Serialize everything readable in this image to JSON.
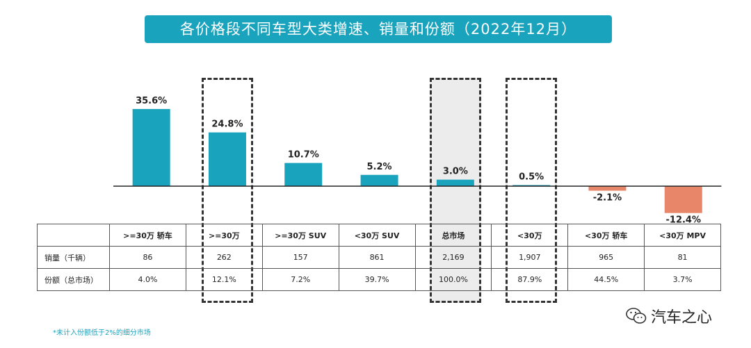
{
  "title": "各价格段不同车型大类增速、销量和份额（2022年12月）",
  "chart_data": {
    "type": "bar",
    "categories": [
      ">=30万 轿车",
      ">=30万",
      ">=30万 SUV",
      "<30万 SUV",
      "总市场",
      "<30万",
      "<30万 轿车",
      "<30万 MPV"
    ],
    "values": [
      35.6,
      24.8,
      10.7,
      5.2,
      3.0,
      0.5,
      -2.1,
      -12.4
    ],
    "value_labels": [
      "35.6%",
      "24.8%",
      "10.7%",
      "5.2%",
      "3.0%",
      "0.5%",
      "-2.1%",
      "-12.4%"
    ],
    "ylim": [
      -14,
      40
    ],
    "positive_color": "#1aa3bd",
    "negative_color": "#e8866a",
    "highlighted": [
      ">=30万",
      "总市场",
      "<30万"
    ],
    "grid": false
  },
  "table": {
    "rows": [
      {
        "label": "销量（千辆）",
        "cells": [
          "86",
          "262",
          "157",
          "861",
          "2,169",
          "1,907",
          "965",
          "81"
        ]
      },
      {
        "label": "份额（总市场）",
        "cells": [
          "4.0%",
          "12.1%",
          "7.2%",
          "39.7%",
          "100.0%",
          "87.9%",
          "44.5%",
          "3.7%"
        ]
      }
    ]
  },
  "footnote": "*未计入份额低于2%的细分市场",
  "watermark": {
    "account_name": "汽车之心",
    "icon": "wechat-icon"
  }
}
